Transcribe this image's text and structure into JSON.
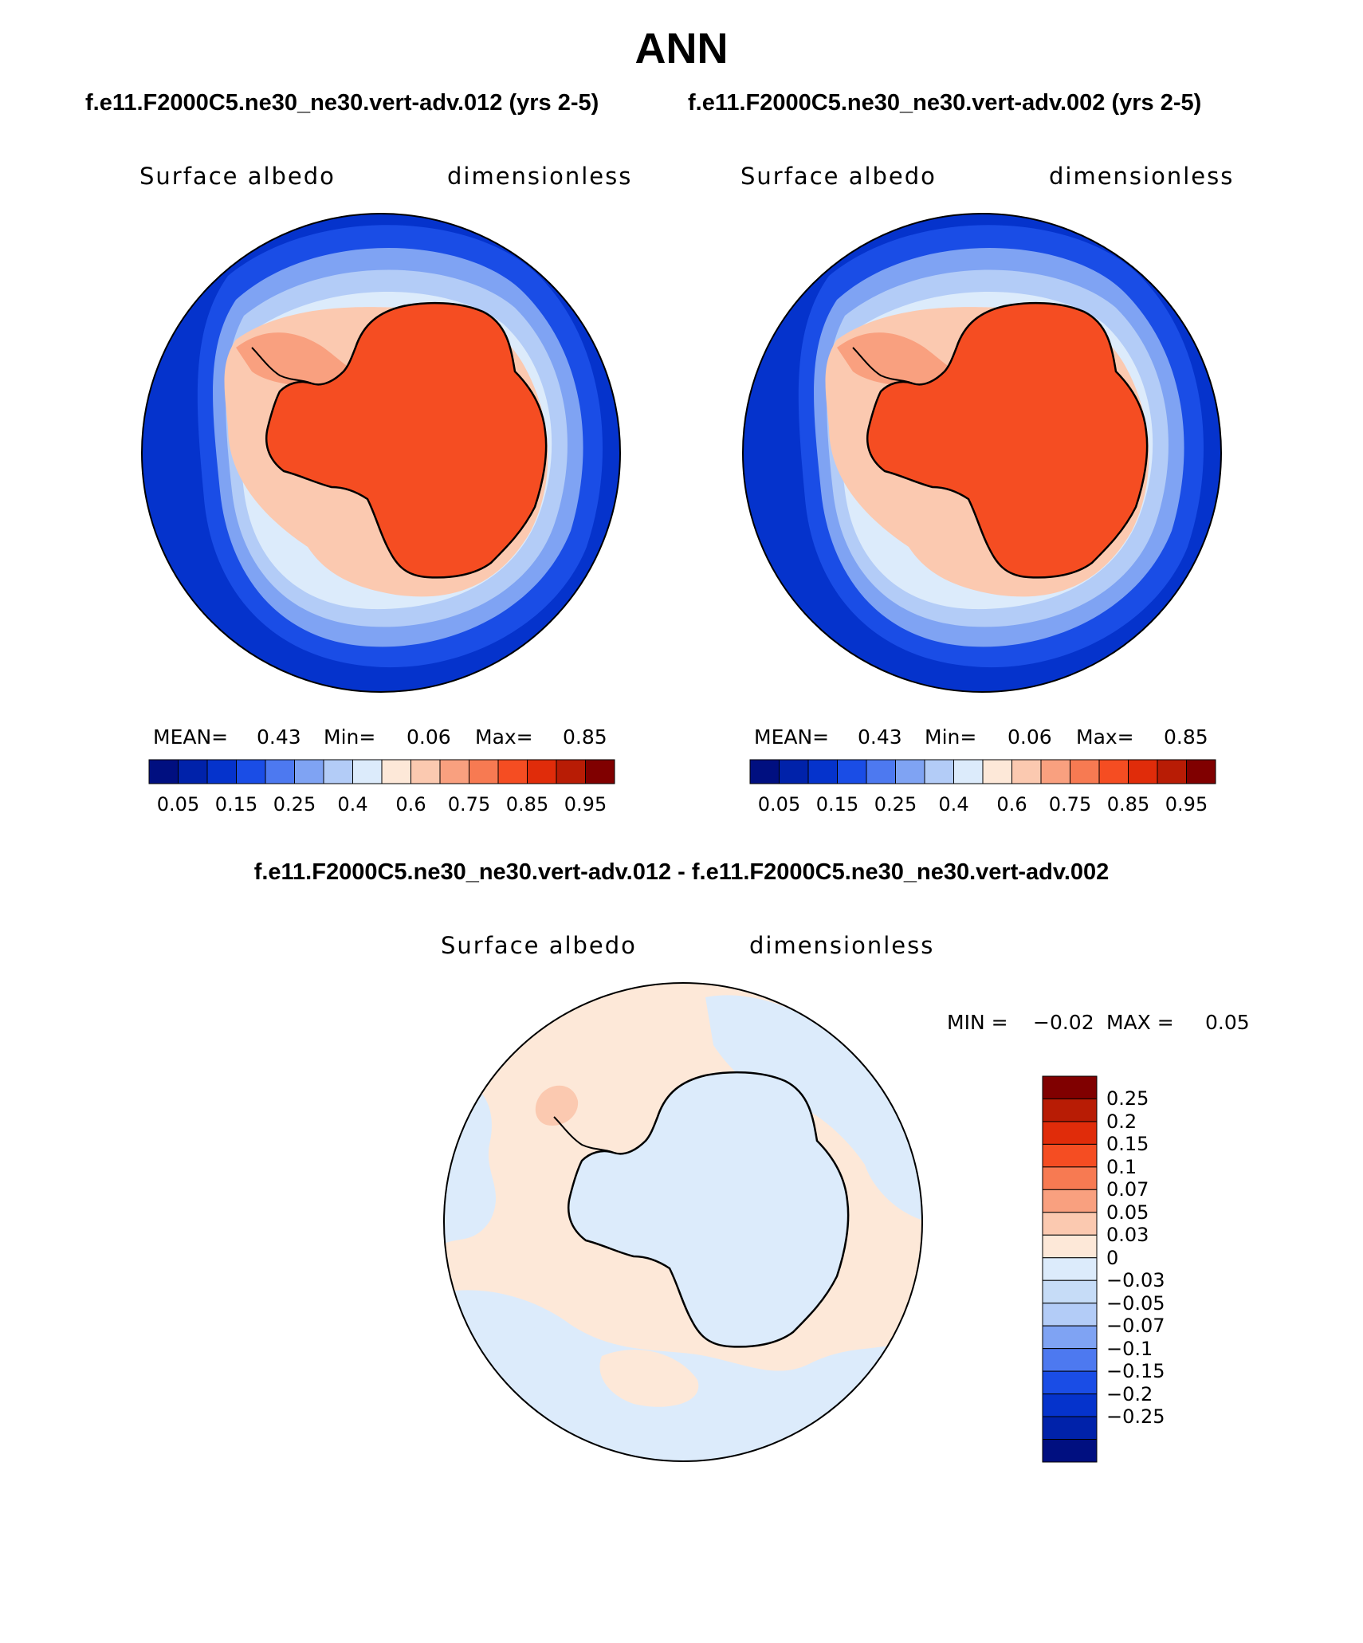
{
  "header": {
    "title": "ANN",
    "left_case": "f.e11.F2000C5.ne30_ne30.vert-adv.012 (yrs 2-5)",
    "right_case": "f.e11.F2000C5.ne30_ne30.vert-adv.002 (yrs 2-5)",
    "diff_title": "f.e11.F2000C5.ne30_ne30.vert-adv.012 - f.e11.F2000C5.ne30_ne30.vert-adv.002"
  },
  "panels": [
    {
      "variable": "Surface albedo",
      "units": "dimensionless",
      "mean_label": "MEAN=",
      "mean": "0.43",
      "min_label": "Min=",
      "min": "0.06",
      "max_label": "Max=",
      "max": "0.85"
    },
    {
      "variable": "Surface albedo",
      "units": "dimensionless",
      "mean_label": "MEAN=",
      "mean": "0.43",
      "min_label": "Min=",
      "min": "0.06",
      "max_label": "Max=",
      "max": "0.85"
    }
  ],
  "diff_panel": {
    "variable": "Surface albedo",
    "units": "dimensionless",
    "min_label": "MIN =",
    "min": "−0.02",
    "max_label": "MAX =",
    "max": "0.05"
  },
  "colorbars": {
    "main": {
      "colors": [
        "#000f80",
        "#0022aa",
        "#0533cc",
        "#1a4de6",
        "#4d79f0",
        "#7fa3f3",
        "#b3ccf7",
        "#dcebfb",
        "#fde8d8",
        "#fbc9b0",
        "#f9a07f",
        "#f77a52",
        "#f54d22",
        "#e02c0a",
        "#b81c05",
        "#800000"
      ],
      "tick_labels": [
        "0.05",
        "0.15",
        "0.25",
        "0.4",
        "0.6",
        "0.75",
        "0.85",
        "0.95"
      ]
    },
    "diff": {
      "colors": [
        "#800000",
        "#b81c05",
        "#e02c0a",
        "#f54d22",
        "#f77a52",
        "#f9a07f",
        "#fbc9b0",
        "#fde8d8",
        "#dcebfb",
        "#c6dcf7",
        "#b3ccf7",
        "#7fa3f3",
        "#4d79f0",
        "#1a4de6",
        "#0533cc",
        "#0022aa",
        "#000f80"
      ],
      "tick_labels": [
        "0.25",
        "0.2",
        "0.15",
        "0.1",
        "0.07",
        "0.05",
        "0.03",
        "0",
        "−0.03",
        "−0.05",
        "−0.07",
        "−0.1",
        "−0.15",
        "−0.2",
        "−0.25"
      ]
    }
  }
}
